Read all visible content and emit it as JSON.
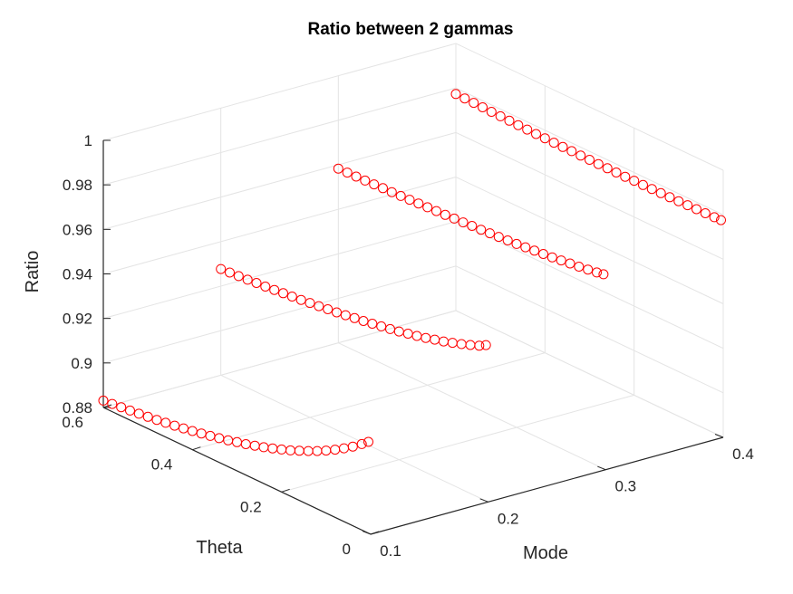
{
  "chart_data": {
    "type": "scatter3d",
    "title": "Ratio between 2 gammas",
    "xlabel": "Mode",
    "ylabel": "Theta",
    "zlabel": "Ratio",
    "xlim": [
      0.1,
      0.4
    ],
    "ylim": [
      0,
      0.6
    ],
    "zlim": [
      0.88,
      1.0
    ],
    "xticks": [
      "0.1",
      "0.2",
      "0.3",
      "0.4"
    ],
    "yticks": [
      "0",
      "0.2",
      "0.4",
      "0.6"
    ],
    "zticks": [
      "0.88",
      "0.9",
      "0.92",
      "0.94",
      "0.96",
      "0.98",
      "1"
    ],
    "grid": true,
    "marker": "circle-open",
    "marker_color": "#ff0000",
    "series": [
      {
        "mode": 0.1,
        "points": [
          [
            0.6,
            0.8831
          ],
          [
            0.58,
            0.8835
          ],
          [
            0.56,
            0.8839
          ],
          [
            0.54,
            0.8843
          ],
          [
            0.52,
            0.8848
          ],
          [
            0.5,
            0.8853
          ],
          [
            0.48,
            0.8858
          ],
          [
            0.46,
            0.8864
          ],
          [
            0.44,
            0.887
          ],
          [
            0.42,
            0.8877
          ],
          [
            0.4,
            0.8884
          ],
          [
            0.38,
            0.8892
          ],
          [
            0.36,
            0.89
          ],
          [
            0.34,
            0.8909
          ],
          [
            0.32,
            0.8918
          ],
          [
            0.3,
            0.8929
          ],
          [
            0.28,
            0.8939
          ],
          [
            0.26,
            0.8951
          ],
          [
            0.24,
            0.8963
          ],
          [
            0.22,
            0.8977
          ],
          [
            0.2,
            0.8991
          ],
          [
            0.18,
            0.9006
          ],
          [
            0.16,
            0.9023
          ],
          [
            0.14,
            0.9041
          ],
          [
            0.12,
            0.906
          ],
          [
            0.1,
            0.9081
          ],
          [
            0.08,
            0.9104
          ],
          [
            0.06,
            0.9129
          ],
          [
            0.04,
            0.9156
          ],
          [
            0.02,
            0.9186
          ],
          [
            0.005,
            0.921
          ]
        ]
      },
      {
        "mode": 0.2,
        "points": [
          [
            0.6,
            0.9277
          ],
          [
            0.58,
            0.928
          ],
          [
            0.56,
            0.9283
          ],
          [
            0.54,
            0.9286
          ],
          [
            0.52,
            0.929
          ],
          [
            0.5,
            0.9293
          ],
          [
            0.48,
            0.9297
          ],
          [
            0.46,
            0.9301
          ],
          [
            0.44,
            0.9305
          ],
          [
            0.42,
            0.9309
          ],
          [
            0.4,
            0.9314
          ],
          [
            0.38,
            0.9319
          ],
          [
            0.36,
            0.9324
          ],
          [
            0.34,
            0.9329
          ],
          [
            0.32,
            0.9335
          ],
          [
            0.3,
            0.9341
          ],
          [
            0.28,
            0.9347
          ],
          [
            0.26,
            0.9354
          ],
          [
            0.24,
            0.9361
          ],
          [
            0.22,
            0.9368
          ],
          [
            0.2,
            0.9376
          ],
          [
            0.18,
            0.9385
          ],
          [
            0.16,
            0.9394
          ],
          [
            0.14,
            0.9404
          ],
          [
            0.12,
            0.9415
          ],
          [
            0.1,
            0.9426
          ],
          [
            0.08,
            0.9439
          ],
          [
            0.06,
            0.9452
          ],
          [
            0.04,
            0.9467
          ],
          [
            0.02,
            0.9483
          ],
          [
            0.005,
            0.95
          ]
        ]
      },
      {
        "mode": 0.3,
        "points": [
          [
            0.6,
            0.9583
          ],
          [
            0.58,
            0.9584
          ],
          [
            0.56,
            0.9585
          ],
          [
            0.54,
            0.9586
          ],
          [
            0.52,
            0.9588
          ],
          [
            0.5,
            0.959
          ],
          [
            0.48,
            0.9591
          ],
          [
            0.46,
            0.9593
          ],
          [
            0.44,
            0.9595
          ],
          [
            0.42,
            0.9597
          ],
          [
            0.4,
            0.9599
          ],
          [
            0.38,
            0.9601
          ],
          [
            0.36,
            0.9603
          ],
          [
            0.34,
            0.9605
          ],
          [
            0.32,
            0.9607
          ],
          [
            0.3,
            0.961
          ],
          [
            0.28,
            0.9612
          ],
          [
            0.26,
            0.9615
          ],
          [
            0.24,
            0.9618
          ],
          [
            0.22,
            0.9621
          ],
          [
            0.2,
            0.9624
          ],
          [
            0.18,
            0.9628
          ],
          [
            0.16,
            0.9632
          ],
          [
            0.14,
            0.9636
          ],
          [
            0.12,
            0.964
          ],
          [
            0.1,
            0.9645
          ],
          [
            0.08,
            0.965
          ],
          [
            0.06,
            0.9655
          ],
          [
            0.04,
            0.9661
          ],
          [
            0.02,
            0.9667
          ],
          [
            0.005,
            0.9673
          ]
        ]
      },
      {
        "mode": 0.4,
        "points": [
          [
            0.6,
            0.9773
          ],
          [
            0.58,
            0.9772
          ],
          [
            0.56,
            0.9771
          ],
          [
            0.54,
            0.977
          ],
          [
            0.52,
            0.9769
          ],
          [
            0.5,
            0.9768
          ],
          [
            0.48,
            0.9767
          ],
          [
            0.46,
            0.9766
          ],
          [
            0.44,
            0.9765
          ],
          [
            0.42,
            0.9764
          ],
          [
            0.4,
            0.9764
          ],
          [
            0.38,
            0.9763
          ],
          [
            0.36,
            0.9763
          ],
          [
            0.34,
            0.9763
          ],
          [
            0.32,
            0.9762
          ],
          [
            0.3,
            0.9762
          ],
          [
            0.28,
            0.9762
          ],
          [
            0.26,
            0.9762
          ],
          [
            0.24,
            0.9762
          ],
          [
            0.22,
            0.9762
          ],
          [
            0.2,
            0.9763
          ],
          [
            0.18,
            0.9763
          ],
          [
            0.16,
            0.9764
          ],
          [
            0.14,
            0.9764
          ],
          [
            0.12,
            0.9765
          ],
          [
            0.1,
            0.9766
          ],
          [
            0.08,
            0.9767
          ],
          [
            0.06,
            0.9768
          ],
          [
            0.04,
            0.9769
          ],
          [
            0.02,
            0.977
          ],
          [
            0.005,
            0.9771
          ]
        ]
      }
    ]
  }
}
